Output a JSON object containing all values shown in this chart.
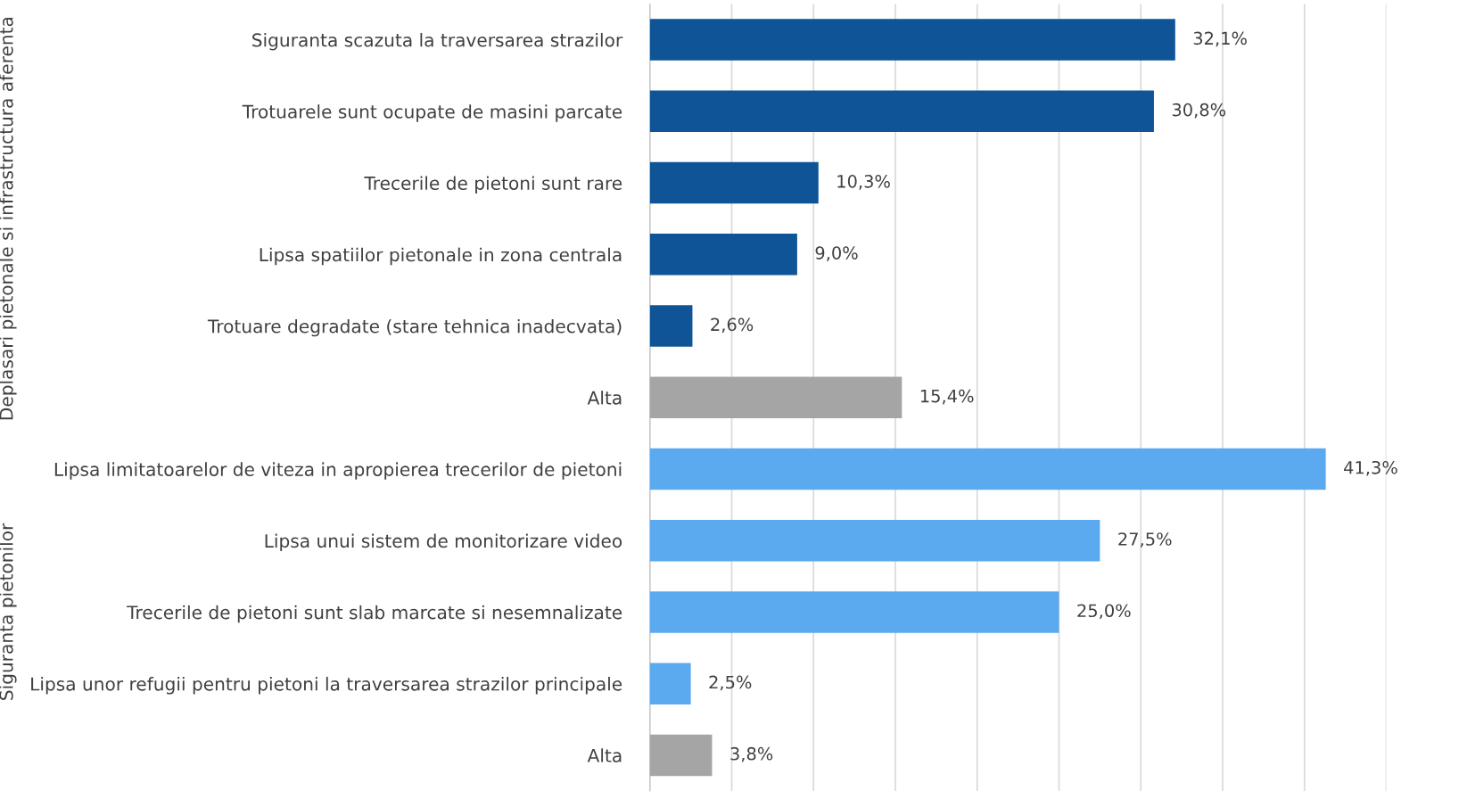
{
  "chart_data": [
    {
      "type": "bar",
      "orientation": "horizontal",
      "ylabel": "Deplasari pietonale si infrastructura aferenta",
      "categories": [
        "Siguranta scazuta la traversarea strazilor",
        "Trotuarele sunt ocupate de masini parcate",
        "Trecerile de pietoni sunt rare",
        "Lipsa spatiilor pietonale in zona centrala",
        "Trotuare degradate (stare tehnica inadecvata)",
        "Alta"
      ],
      "values": [
        32.1,
        30.8,
        10.3,
        9.0,
        2.6,
        15.4
      ],
      "value_labels": [
        "32,1%",
        "30,8%",
        "10,3%",
        "9,0%",
        "2,6%",
        "15,4%"
      ],
      "colors": [
        "#0e5496",
        "#0e5496",
        "#0e5496",
        "#0e5496",
        "#0e5496",
        "#a5a5a5"
      ],
      "xlim": [
        0,
        45
      ],
      "xticks": [
        {
          "value": 0,
          "label": null
        },
        {
          "value": 5,
          "label": null
        },
        {
          "value": 10,
          "label": null
        },
        {
          "value": 15,
          "label": null
        },
        {
          "value": 20,
          "label": null
        },
        {
          "value": 25,
          "label": null
        },
        {
          "value": 30,
          "label": null
        },
        {
          "value": 35,
          "label": null
        },
        {
          "value": 40,
          "label": null
        },
        {
          "value": 45,
          "label": null
        }
      ],
      "grid": "x",
      "tick_labels": "y"
    },
    {
      "type": "bar",
      "orientation": "horizontal",
      "ylabel": "Siguranta pietonilor",
      "categories": [
        "Lipsa limitatoarelor de viteza in apropierea trecerilor de pietoni",
        "Lipsa unui sistem de monitorizare video",
        "Trecerile de pietoni sunt slab marcate si nesemnalizate",
        "Lipsa unor refugii pentru pietoni la traversarea strazilor principale",
        "Alta"
      ],
      "values": [
        41.3,
        27.5,
        25.0,
        2.5,
        3.8
      ],
      "value_labels": [
        "41,3%",
        "27,5%",
        "25,0%",
        "2,5%",
        "3,8%"
      ],
      "colors": [
        "#5ba9ef",
        "#5ba9ef",
        "#5ba9ef",
        "#5ba9ef",
        "#a5a5a5"
      ],
      "xlim": [
        0,
        45
      ],
      "xticks": [
        {
          "value": 0,
          "label": null
        },
        {
          "value": 5,
          "label": null
        },
        {
          "value": 10,
          "label": null
        },
        {
          "value": 15,
          "label": null
        },
        {
          "value": 20,
          "label": null
        },
        {
          "value": 25,
          "label": null
        },
        {
          "value": 30,
          "label": null
        },
        {
          "value": 35,
          "label": null
        },
        {
          "value": 40,
          "label": null
        },
        {
          "value": 45,
          "label": null
        }
      ],
      "grid": "x",
      "tick_labels": "y"
    }
  ]
}
